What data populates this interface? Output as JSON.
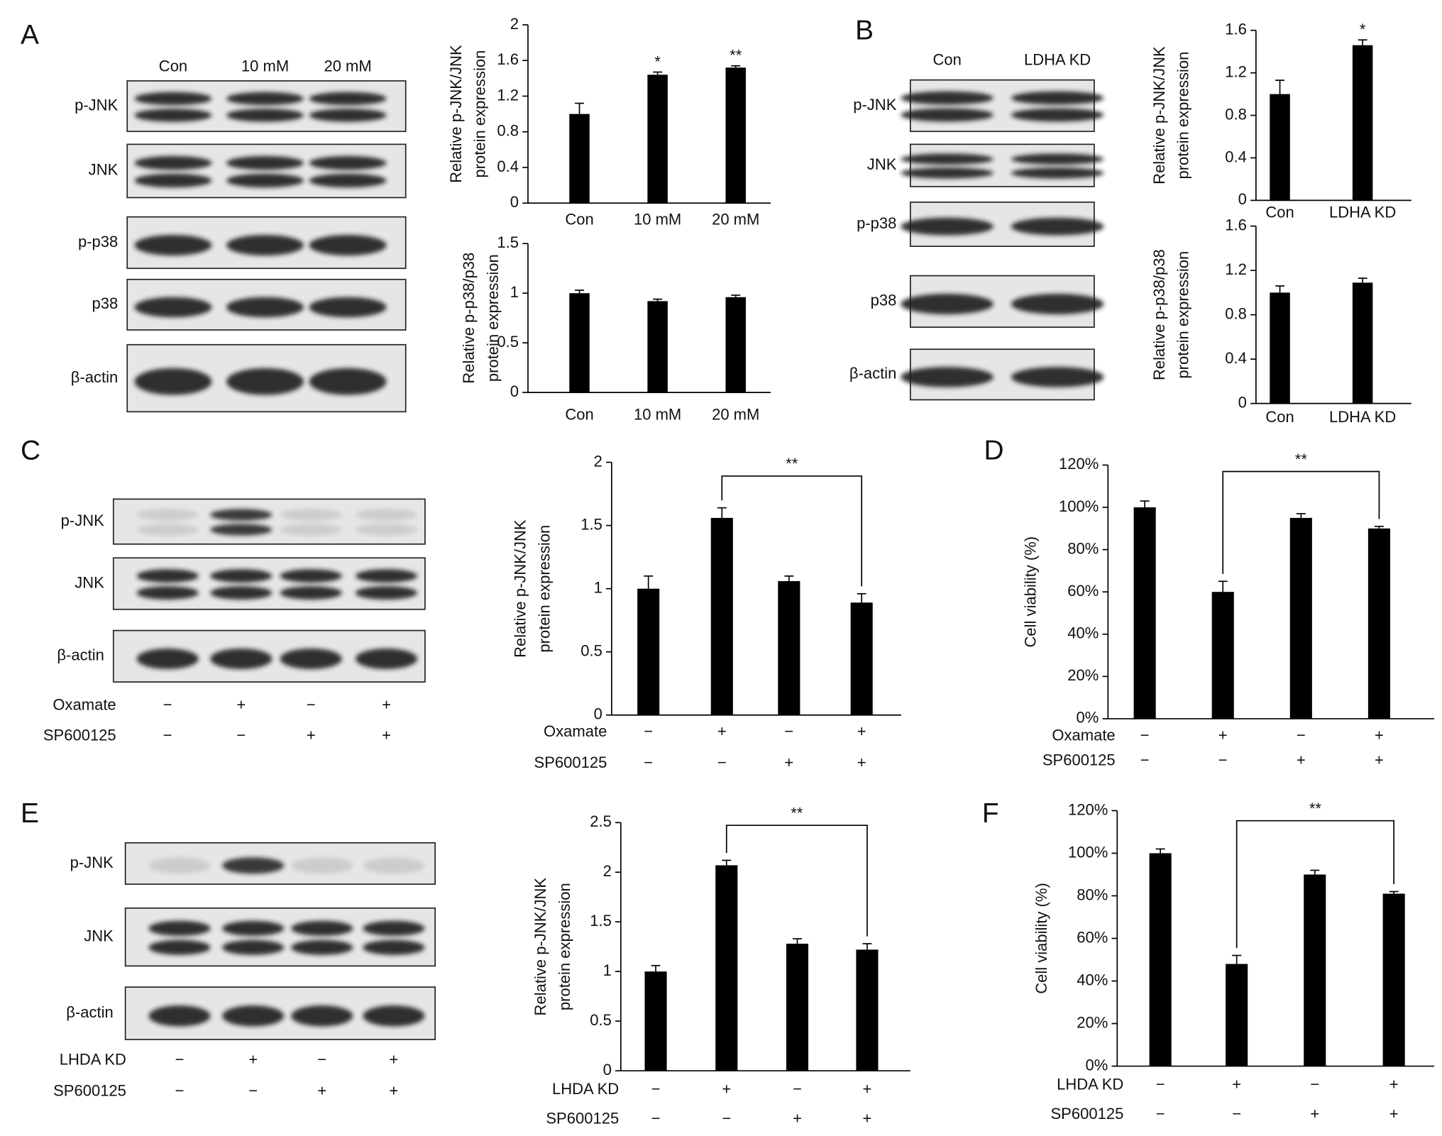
{
  "panel_labels": [
    "A",
    "B",
    "C",
    "D",
    "E",
    "F"
  ],
  "blots": [
    {
      "lanes": [
        "Con",
        "10 mM",
        "20 mM"
      ],
      "rows": [
        "p-JNK",
        "JNK",
        "p-p38",
        "p38",
        "β-actin"
      ]
    },
    {
      "lanes": [
        "Con",
        "LDHA KD"
      ],
      "rows": [
        "p-JNK",
        "JNK",
        "p-p38",
        "p38",
        "β-actin"
      ]
    },
    {
      "rows": [
        "p-JNK",
        "JNK",
        "β-actin"
      ],
      "treatments": [
        {
          "name": "Oxamate",
          "signs": [
            "−",
            "+",
            "−",
            "+"
          ]
        },
        {
          "name": "SP600125",
          "signs": [
            "−",
            "−",
            "+",
            "+"
          ]
        }
      ]
    },
    {
      "rows": [
        "p-JNK",
        "JNK",
        "β-actin"
      ],
      "treatments": [
        {
          "name": "LHDA KD",
          "signs": [
            "−",
            "+",
            "−",
            "+"
          ]
        },
        {
          "name": "SP600125",
          "signs": [
            "−",
            "−",
            "+",
            "+"
          ]
        }
      ]
    }
  ],
  "chart_data": [
    {
      "type": "bar",
      "ylabel": [
        "Relative p-JNK/JNK",
        "protein expression"
      ],
      "categories": [
        "Con",
        "10 mM",
        "20 mM"
      ],
      "values": [
        1.0,
        1.44,
        1.52
      ],
      "errors": [
        0.12,
        0.03,
        0.02
      ],
      "annotations": [
        null,
        "*",
        "**"
      ],
      "color": "#000000",
      "ylim": [
        0,
        2
      ],
      "yticks": [
        0,
        0.4,
        0.8,
        1.2,
        1.6,
        2
      ]
    },
    {
      "type": "bar",
      "ylabel": [
        "Relative p-p38/p38",
        "protein expression"
      ],
      "categories": [
        "Con",
        "10 mM",
        "20 mM"
      ],
      "values": [
        1.0,
        0.92,
        0.96
      ],
      "errors": [
        0.03,
        0.02,
        0.02
      ],
      "color": "#000000",
      "ylim": [
        0,
        1.5
      ],
      "yticks": [
        0,
        0.5,
        1,
        1.5
      ]
    },
    {
      "type": "bar",
      "ylabel": [
        "Relative p-JNK/JNK",
        "protein expression"
      ],
      "categories": [
        "Con",
        "LDHA KD"
      ],
      "values": [
        1.0,
        1.46
      ],
      "errors": [
        0.13,
        0.05
      ],
      "annotations": [
        null,
        "*"
      ],
      "color": "#000000",
      "ylim": [
        0,
        1.6
      ],
      "yticks": [
        0,
        0.4,
        0.8,
        1.2,
        1.6
      ]
    },
    {
      "type": "bar",
      "ylabel": [
        "Relative p-p38/p38",
        "protein expression"
      ],
      "categories": [
        "Con",
        "LDHA KD"
      ],
      "values": [
        1.0,
        1.09
      ],
      "errors": [
        0.06,
        0.04
      ],
      "color": "#000000",
      "ylim": [
        0,
        1.6
      ],
      "yticks": [
        0,
        0.4,
        0.8,
        1.2,
        1.6
      ]
    },
    {
      "type": "bar",
      "ylabel": [
        "Relative p-JNK/JNK",
        "protein expression"
      ],
      "treatments": [
        {
          "name": "Oxamate",
          "signs": [
            "−",
            "+",
            "−",
            "+"
          ]
        },
        {
          "name": "SP600125",
          "signs": [
            "−",
            "−",
            "+",
            "+"
          ]
        }
      ],
      "values": [
        1.0,
        1.56,
        1.06,
        0.89
      ],
      "errors": [
        0.1,
        0.08,
        0.04,
        0.07
      ],
      "comparison": {
        "categories": [
          1,
          3
        ],
        "label": "**"
      },
      "color": "#000000",
      "ylim": [
        0,
        2
      ],
      "yticks": [
        0,
        0.5,
        1,
        1.5,
        2
      ]
    },
    {
      "type": "bar",
      "ylabel": [
        "Cell viability (%)"
      ],
      "treatments": [
        {
          "name": "Oxamate",
          "signs": [
            "−",
            "+",
            "−",
            "+"
          ]
        },
        {
          "name": "SP600125",
          "signs": [
            "−",
            "−",
            "+",
            "+"
          ]
        }
      ],
      "values": [
        100,
        60,
        95,
        90
      ],
      "errors": [
        3,
        5,
        2,
        1
      ],
      "comparison": {
        "categories": [
          1,
          3
        ],
        "label": "**"
      },
      "color": "#000000",
      "ylim": [
        0,
        120
      ],
      "yticks": [
        {
          "value": 0,
          "label": "0%"
        },
        {
          "value": 20,
          "label": "20%"
        },
        {
          "value": 40,
          "label": "40%"
        },
        {
          "value": 60,
          "label": "60%"
        },
        {
          "value": 80,
          "label": "80%"
        },
        {
          "value": 100,
          "label": "100%"
        },
        {
          "value": 120,
          "label": "120%"
        }
      ]
    },
    {
      "type": "bar",
      "ylabel": [
        "Relative p-JNK/JNK",
        "protein expression"
      ],
      "treatments": [
        {
          "name": "LHDA KD",
          "signs": [
            "−",
            "+",
            "−",
            "+"
          ]
        },
        {
          "name": "SP600125",
          "signs": [
            "−",
            "−",
            "+",
            "+"
          ]
        }
      ],
      "values": [
        1.0,
        2.07,
        1.28,
        1.22
      ],
      "errors": [
        0.06,
        0.05,
        0.05,
        0.06
      ],
      "comparison": {
        "categories": [
          1,
          3
        ],
        "label": "**"
      },
      "color": "#000000",
      "ylim": [
        0,
        2.5
      ],
      "yticks": [
        0,
        0.5,
        1,
        1.5,
        2,
        2.5
      ]
    },
    {
      "type": "bar",
      "ylabel": [
        "Cell viability (%)"
      ],
      "treatments": [
        {
          "name": "LHDA KD",
          "signs": [
            "−",
            "+",
            "−",
            "+"
          ]
        },
        {
          "name": "SP600125",
          "signs": [
            "−",
            "−",
            "+",
            "+"
          ]
        }
      ],
      "values": [
        100,
        48,
        90,
        81
      ],
      "errors": [
        2,
        4,
        2,
        1
      ],
      "comparison": {
        "categories": [
          1,
          3
        ],
        "label": "**"
      },
      "color": "#000000",
      "ylim": [
        0,
        120
      ],
      "yticks": [
        {
          "value": 0,
          "label": "0%"
        },
        {
          "value": 20,
          "label": "20%"
        },
        {
          "value": 40,
          "label": "40%"
        },
        {
          "value": 60,
          "label": "60%"
        },
        {
          "value": 80,
          "label": "80%"
        },
        {
          "value": 100,
          "label": "100%"
        },
        {
          "value": 120,
          "label": "120%"
        }
      ]
    }
  ]
}
